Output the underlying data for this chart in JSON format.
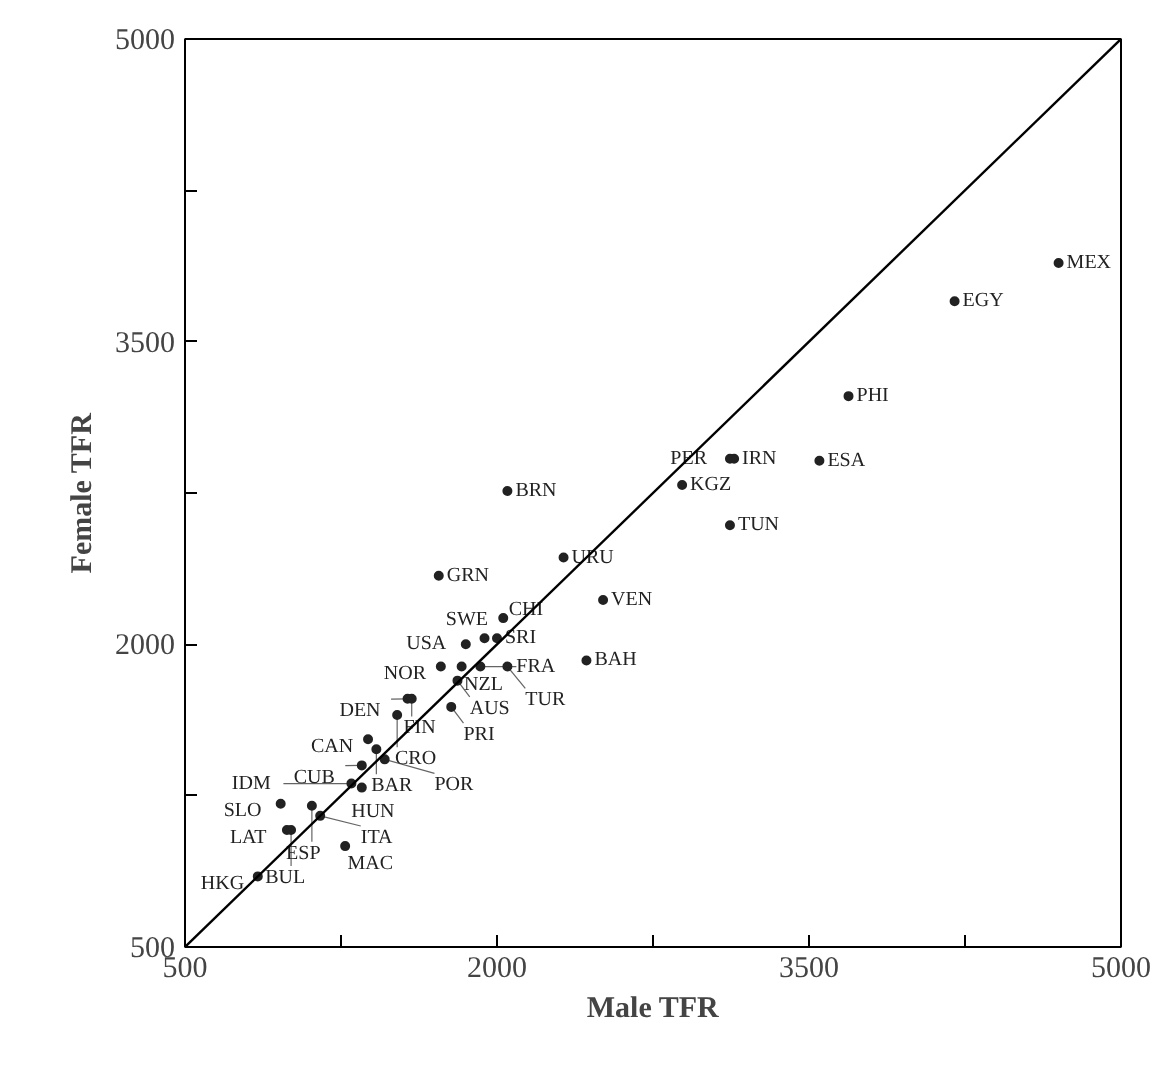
{
  "chart_data": {
    "type": "scatter",
    "xlabel": "Male TFR",
    "ylabel": "Female TFR",
    "xlim": [
      500,
      5000
    ],
    "ylim": [
      500,
      5000
    ],
    "xticks": [
      500,
      {
        "value": 1250,
        "label": null
      },
      2000,
      {
        "value": 2750,
        "label": null
      },
      3500,
      {
        "value": 4250,
        "label": null
      },
      5000
    ],
    "yticks": [
      500,
      {
        "value": 1250,
        "label": null
      },
      2000,
      {
        "value": 2750,
        "label": null
      },
      3500,
      {
        "value": 4250,
        "label": null
      },
      5000
    ],
    "series": [
      {
        "color": "#222222",
        "marker": "circle",
        "x": [
          4700,
          4200,
          3690,
          3550,
          3120,
          3140,
          2890,
          3120,
          2510,
          2320,
          2050,
          1720,
          2030,
          2430,
          1850,
          1940,
          2000,
          1730,
          1830,
          1920,
          2050,
          1810,
          1570,
          1590,
          1780,
          1520,
          1380,
          1420,
          1460,
          1350,
          1300,
          1350,
          960,
          1110,
          1150,
          990,
          1010,
          1270,
          850
        ],
        "values": [
          3890,
          3700,
          3230,
          2910,
          2920,
          2920,
          2790,
          2590,
          2220,
          2430,
          2760,
          2340,
          2130,
          1920,
          2000,
          2030,
          2030,
          1890,
          1890,
          1890,
          1890,
          1820,
          1730,
          1730,
          1690,
          1650,
          1530,
          1480,
          1430,
          1400,
          1310,
          1290,
          1210,
          1200,
          1150,
          1080,
          1080,
          1000,
          850
        ],
        "value_labels": [
          "MEX",
          "EGY",
          "PHI",
          "ESA",
          "PER",
          "IRN",
          "KGZ",
          "TUN",
          "VEN",
          "URU",
          "BRN",
          "GRN",
          "CHI",
          "BAH",
          "USA",
          "SWE",
          "SRI",
          "NOR",
          "NZL",
          "FRA",
          "TUR",
          "AUS",
          "DEN",
          "FIN",
          "PRI",
          "CRO",
          "CAN",
          "BAR",
          "POR",
          "CUB",
          "IDM",
          "HUN",
          "SLO",
          "ESP",
          "ITA",
          "LAT",
          "BUL",
          "MAC",
          "HKG"
        ]
      },
      {
        "type": "line",
        "color": "#000000",
        "line_style": "solid",
        "x": [
          500,
          5000
        ],
        "values": [
          500,
          5000
        ]
      }
    ]
  }
}
